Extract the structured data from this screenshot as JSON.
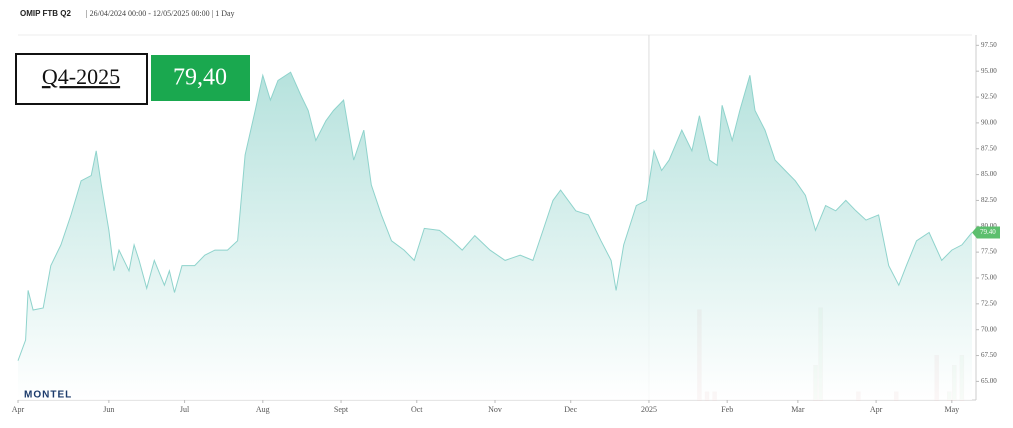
{
  "chart_data": {
    "type": "area",
    "title": "OMIP FTB Q2",
    "subtitle": "| 26/04/2024 00:00 - 12/05/2025 00:00 | 1 Day",
    "contract": "Q4-2025",
    "price_label": "79,40",
    "last_value_label": "79.40",
    "logo": "MONTEL",
    "color": "#8fd3cc",
    "x": [
      0,
      3,
      4,
      6,
      10,
      13,
      17,
      21,
      25,
      29,
      31,
      33,
      36,
      38,
      40,
      44,
      46,
      48,
      51,
      54,
      58,
      60,
      62,
      65,
      70,
      74,
      78,
      83,
      87,
      90,
      94,
      97,
      100,
      103,
      108,
      112,
      115,
      118,
      122,
      125,
      129,
      133,
      137,
      140,
      144,
      148,
      153,
      157,
      161,
      167,
      172,
      176,
      181,
      187,
      193,
      199,
      204,
      208,
      212,
      215,
      221,
      226,
      231,
      235,
      237,
      240,
      245,
      249,
      252,
      255,
      258,
      263,
      267,
      270,
      274,
      277,
      279,
      283,
      286,
      290,
      292,
      296,
      300,
      304,
      308,
      312,
      316,
      320,
      324,
      328,
      332,
      336,
      341,
      345,
      349,
      352,
      356,
      361,
      366,
      370,
      374,
      378
    ],
    "values": [
      67.0,
      69.0,
      73.8,
      71.9,
      72.1,
      76.2,
      78.2,
      81.1,
      84.4,
      84.9,
      87.3,
      84.0,
      79.6,
      75.7,
      77.7,
      75.7,
      78.2,
      76.7,
      74.0,
      76.7,
      74.3,
      75.7,
      73.6,
      76.2,
      76.2,
      77.2,
      77.7,
      77.7,
      78.6,
      86.9,
      91.2,
      94.6,
      92.2,
      94.1,
      94.9,
      92.7,
      91.2,
      88.3,
      90.2,
      91.2,
      92.2,
      86.4,
      89.3,
      84.0,
      81.1,
      78.6,
      77.7,
      76.7,
      79.8,
      79.6,
      78.6,
      77.7,
      79.1,
      77.7,
      76.7,
      77.2,
      76.7,
      79.6,
      82.5,
      83.5,
      81.5,
      81.1,
      78.6,
      76.7,
      73.8,
      78.2,
      82.0,
      82.5,
      87.3,
      85.4,
      86.4,
      89.3,
      87.3,
      90.7,
      86.4,
      85.9,
      91.7,
      88.3,
      91.2,
      94.6,
      91.2,
      89.3,
      86.4,
      85.4,
      84.4,
      83.0,
      79.6,
      82.0,
      81.5,
      82.5,
      81.5,
      80.6,
      81.1,
      76.2,
      74.3,
      76.2,
      78.6,
      79.4,
      76.7,
      77.7,
      78.2,
      79.4
    ],
    "volume": {
      "x": [
        270,
        273,
        276,
        316,
        318,
        333,
        348,
        364,
        369,
        371,
        374
      ],
      "values": [
        99,
        9,
        9,
        38,
        101,
        9,
        9,
        49,
        9,
        38,
        49
      ],
      "colors": [
        "#e6c3c3",
        "#e6c3c3",
        "#e6c3c3",
        "#cde6cd",
        "#cde6cd",
        "#e6c3c3",
        "#e6c3c3",
        "#e6c3c3",
        "#cde6cd",
        "#cde6cd",
        "#cde6cd"
      ]
    },
    "xlim": [
      0,
      378
    ],
    "xticks": [
      {
        "value": 0,
        "label": "Apr"
      },
      {
        "value": 36,
        "label": "Jun"
      },
      {
        "value": 66,
        "label": "Jul"
      },
      {
        "value": 97,
        "label": "Aug"
      },
      {
        "value": 128,
        "label": "Sept"
      },
      {
        "value": 158,
        "label": "Oct"
      },
      {
        "value": 189,
        "label": "Nov"
      },
      {
        "value": 219,
        "label": "Dec"
      },
      {
        "value": 250,
        "label": "2025"
      },
      {
        "value": 281,
        "label": "Feb"
      },
      {
        "value": 309,
        "label": "Mar"
      },
      {
        "value": 340,
        "label": "Apr"
      },
      {
        "value": 370,
        "label": "May"
      }
    ],
    "vline": 250,
    "ylim": [
      63.2,
      98.5
    ],
    "yticks": [
      {
        "value": 65,
        "label": "65.00"
      },
      {
        "value": 67.5,
        "label": "67.50"
      },
      {
        "value": 70,
        "label": "70.00"
      },
      {
        "value": 72.5,
        "label": "72.50"
      },
      {
        "value": 75,
        "label": "75.00"
      },
      {
        "value": 77.5,
        "label": "77.50"
      },
      {
        "value": 80,
        "label": "80.00"
      },
      {
        "value": 82.5,
        "label": "82.50"
      },
      {
        "value": 85,
        "label": "85.00"
      },
      {
        "value": 87.5,
        "label": "87.50"
      },
      {
        "value": 90,
        "label": "90.00"
      },
      {
        "value": 92.5,
        "label": "92.50"
      },
      {
        "value": 95,
        "label": "95.00"
      },
      {
        "value": 97.5,
        "label": "97.50"
      }
    ],
    "y2lim": [
      0,
      400
    ]
  }
}
